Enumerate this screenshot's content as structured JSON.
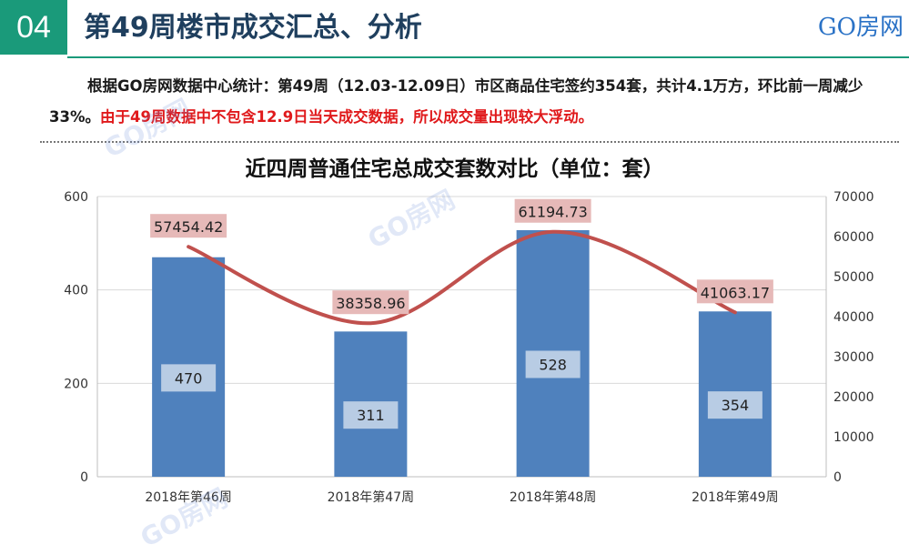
{
  "header": {
    "section_number": "04",
    "title": "第49周楼市成交汇总、分析",
    "brand": "GO房网"
  },
  "summary": {
    "text_normal": "根据GO房网数据中心统计：第49周（12.03-12.09日）市区商品住宅签约354套，共计4.1万方，环比前一周减少33%。",
    "text_highlight": "由于49周数据中不包含12.9日当天成交数据，所以成交量出现较大浮动。"
  },
  "watermark": "GO房网",
  "colors": {
    "accent": "#1a9a7a",
    "bar": "#4f81bd",
    "line": "#c0504d",
    "line_label_bg": "#e6b9b8",
    "bar_label_bg": "#b8cce4",
    "highlight_text": "#e0191b"
  },
  "chart_data": {
    "type": "bar",
    "title": "近四周普通住宅总成交套数对比（单位：套）",
    "categories": [
      "2018年第46周",
      "2018年第47周",
      "2018年第48周",
      "2018年第49周"
    ],
    "series": [
      {
        "type": "bar",
        "axis": "left",
        "values": [
          470,
          311,
          528,
          354
        ],
        "labels": [
          "470",
          "311",
          "528",
          "354"
        ]
      },
      {
        "type": "line",
        "axis": "right",
        "smooth": true,
        "values": [
          57454.42,
          38358.96,
          61194.73,
          41063.17
        ],
        "labels": [
          "57454.42",
          "38358.96",
          "61194.73",
          "41063.17"
        ]
      }
    ],
    "y_left": {
      "min": 0,
      "max": 600,
      "ticks": [
        "0",
        "200",
        "400",
        "600"
      ]
    },
    "y_right": {
      "min": 0,
      "max": 70000,
      "ticks": [
        "0",
        "10000",
        "20000",
        "30000",
        "40000",
        "50000",
        "60000",
        "70000"
      ]
    },
    "grid": true,
    "legend": "none"
  }
}
